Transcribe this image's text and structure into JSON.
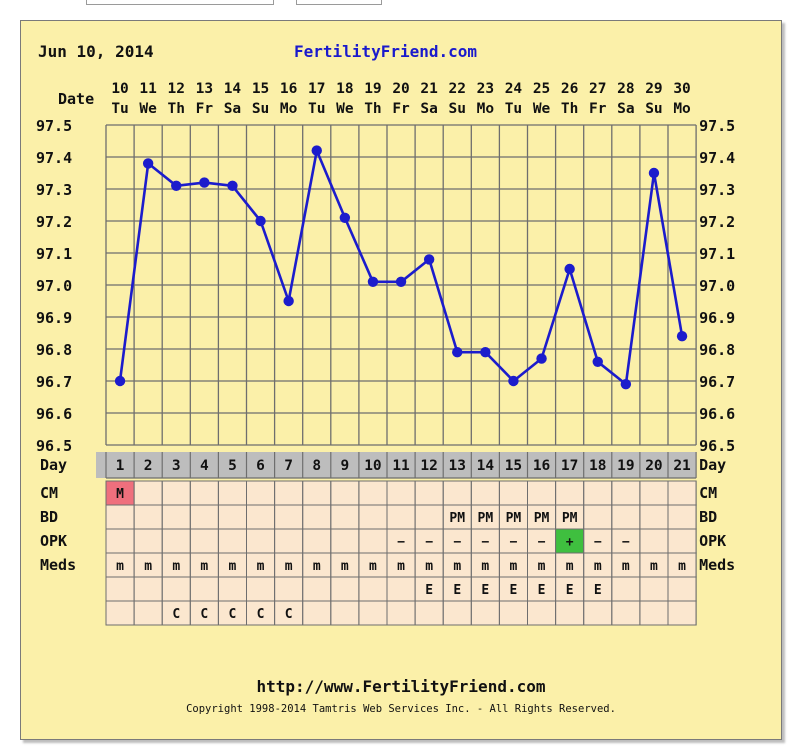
{
  "header": {
    "date": "Jun 10, 2014",
    "site": "FertilityFriend.com"
  },
  "footer": {
    "url": "http://www.FertilityFriend.com",
    "copyright": "Copyright 1998-2014 Tamtris Web Services Inc. - All Rights Reserved."
  },
  "colors": {
    "background": "#fbf0a9",
    "line": "#1c1ccc",
    "grid": "#6e6e6e",
    "day_row": "#bdbdbd",
    "cm_menses": "#ef6f7d",
    "opk_positive": "#3fbf3f",
    "site_title": "#1a1acc"
  },
  "chart_data": {
    "type": "line",
    "x_label": "Date",
    "day_label": "Day",
    "dates": [
      "10",
      "11",
      "12",
      "13",
      "14",
      "15",
      "16",
      "17",
      "18",
      "19",
      "20",
      "21",
      "22",
      "23",
      "24",
      "25",
      "26",
      "27",
      "28",
      "29",
      "30"
    ],
    "weekdays": [
      "Tu",
      "We",
      "Th",
      "Fr",
      "Sa",
      "Su",
      "Mo",
      "Tu",
      "We",
      "Th",
      "Fr",
      "Sa",
      "Su",
      "Mo",
      "Tu",
      "We",
      "Th",
      "Fr",
      "Sa",
      "Su",
      "Mo"
    ],
    "days": [
      "1",
      "2",
      "3",
      "4",
      "5",
      "6",
      "7",
      "8",
      "9",
      "10",
      "11",
      "12",
      "13",
      "14",
      "15",
      "16",
      "17",
      "18",
      "19",
      "20",
      "21"
    ],
    "y_ticks": [
      "97.5",
      "97.4",
      "97.3",
      "97.2",
      "97.1",
      "97.0",
      "96.9",
      "96.8",
      "96.7",
      "96.6",
      "96.5"
    ],
    "ylim": [
      96.5,
      97.5
    ],
    "series": [
      {
        "values": [
          96.7,
          97.38,
          97.31,
          97.32,
          97.31,
          97.2,
          96.95,
          97.42,
          97.21,
          97.01,
          97.01,
          97.08,
          96.79,
          96.79,
          96.7,
          96.77,
          97.05,
          96.76,
          96.69,
          97.35,
          96.84
        ]
      }
    ],
    "rows": [
      {
        "label": "CM",
        "values": [
          "M",
          "",
          "",
          "",
          "",
          "",
          "",
          "",
          "",
          "",
          "",
          "",
          "",
          "",
          "",
          "",
          "",
          "",
          "",
          "",
          ""
        ]
      },
      {
        "label": "BD",
        "values": [
          "",
          "",
          "",
          "",
          "",
          "",
          "",
          "",
          "",
          "",
          "",
          "",
          "PM",
          "PM",
          "PM",
          "PM",
          "PM",
          "",
          "",
          "",
          ""
        ]
      },
      {
        "label": "OPK",
        "values": [
          "",
          "",
          "",
          "",
          "",
          "",
          "",
          "",
          "",
          "",
          "−",
          "−",
          "−",
          "−",
          "−",
          "−",
          "+",
          "−",
          "−",
          "",
          ""
        ]
      },
      {
        "label": "Meds",
        "values": [
          "m",
          "m",
          "m",
          "m",
          "m",
          "m",
          "m",
          "m",
          "m",
          "m",
          "m",
          "m",
          "m",
          "m",
          "m",
          "m",
          "m",
          "m",
          "m",
          "m",
          "m"
        ]
      },
      {
        "label": "",
        "values": [
          "",
          "",
          "",
          "",
          "",
          "",
          "",
          "",
          "",
          "",
          "",
          "E",
          "E",
          "E",
          "E",
          "E",
          "E",
          "E",
          "",
          "",
          ""
        ]
      },
      {
        "label": "",
        "values": [
          "",
          "",
          "C",
          "C",
          "C",
          "C",
          "C",
          "",
          "",
          "",
          "",
          "",
          "",
          "",
          "",
          "",
          "",
          "",
          "",
          "",
          ""
        ]
      }
    ]
  }
}
